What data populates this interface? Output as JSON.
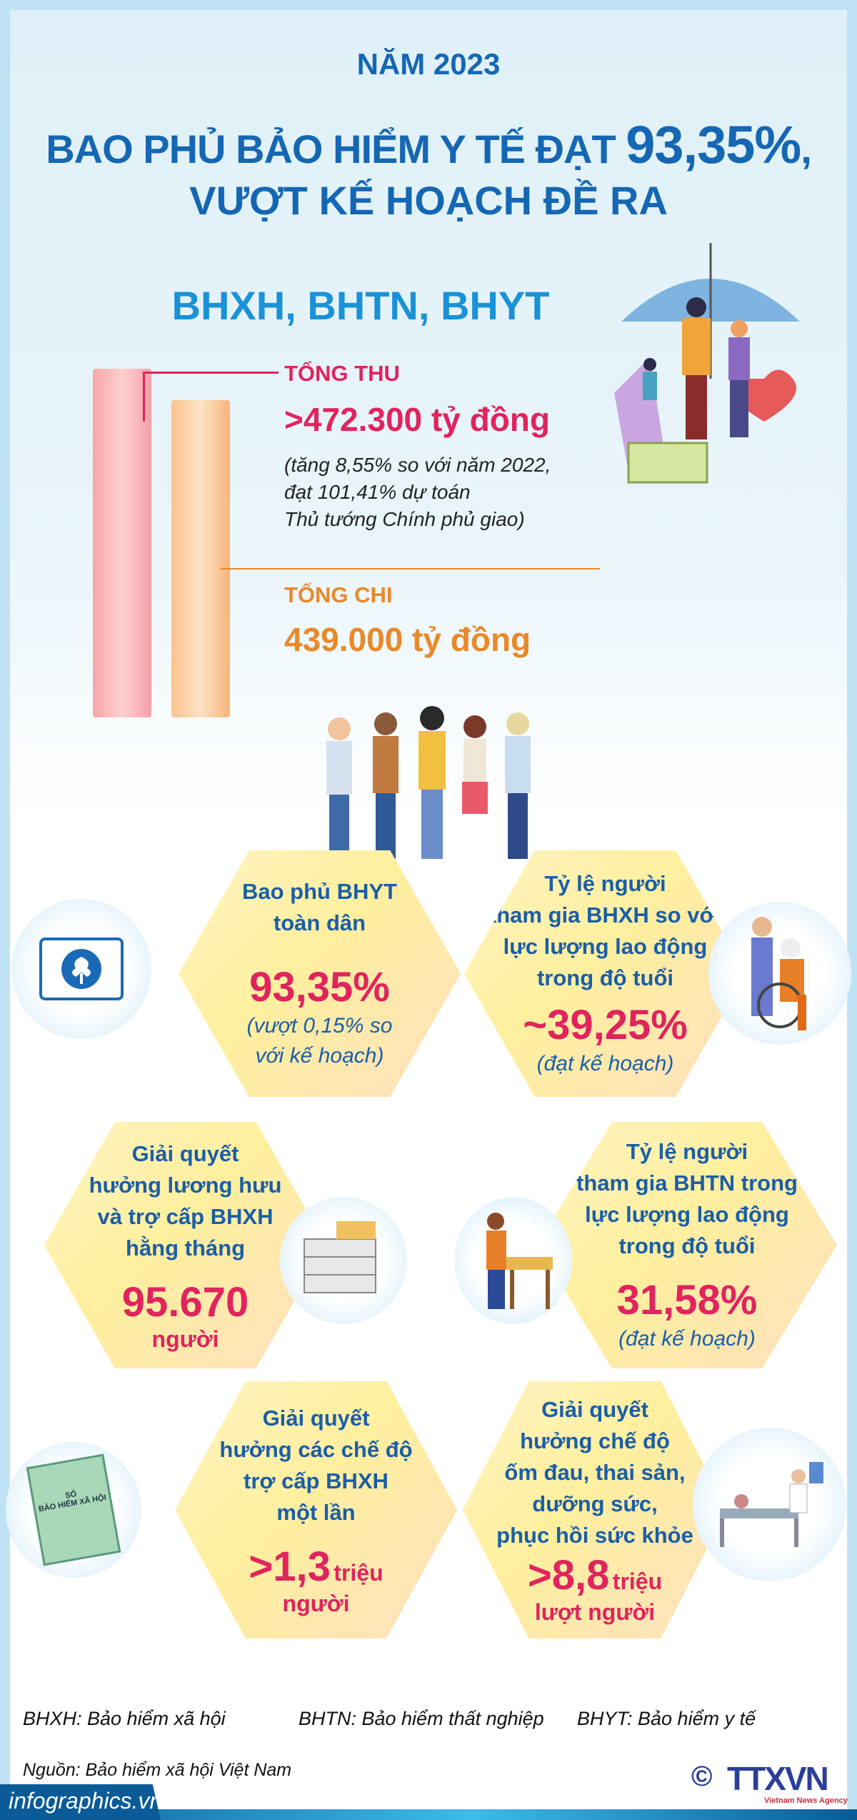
{
  "header": {
    "year": "NĂM 2023",
    "title_prefix": "BAO PHỦ BẢO HIỂM Y TẾ ĐẠT ",
    "title_value": "93,35%",
    "title_suffix": ",",
    "title_line2": "VƯỢT KẾ HOẠCH ĐỀ RA",
    "subtitle": "BHXH, BHTN, BHYT"
  },
  "revenue": {
    "label": "TỔNG THU",
    "value": ">472.300 tỷ đồng",
    "note": [
      "(tăng 8,55% so với năm 2022,",
      "đạt 101,41% dự toán",
      "Thủ tướng Chính phủ giao)"
    ]
  },
  "expense": {
    "label": "TỔNG CHI",
    "value": "439.000 tỷ đồng"
  },
  "colors": {
    "title": "#1567b3",
    "subtitle": "#1a92d8",
    "revenue": "#e0245e",
    "expense": "#e8892a",
    "hex_text": "#1a5ea8"
  },
  "stats": [
    {
      "title": [
        "Bao phủ BHYT",
        "toàn dân"
      ],
      "value": "93,35%",
      "unit": "",
      "note": [
        "(vượt 0,15% so",
        "với kế hoạch)"
      ],
      "icon": "insurance-card-icon"
    },
    {
      "title": [
        "Tỷ lệ người",
        "tham gia BHXH so với",
        "lực lượng lao động",
        "trong độ tuổi"
      ],
      "value": "~39,25%",
      "unit": "",
      "note": [
        "(đạt kế hoạch)"
      ],
      "icon": "wheelchair-icon"
    },
    {
      "title": [
        "Giải quyết",
        "hưởng lương hưu",
        "và trợ cấp BHXH",
        "hằng tháng"
      ],
      "value": "95.670",
      "unit": "người",
      "note": [],
      "icon": "money-stack-icon"
    },
    {
      "title": [
        "Tỷ lệ người",
        "tham gia BHTN trong",
        "lực lượng lao động",
        "trong độ tuổi"
      ],
      "value": "31,58%",
      "unit": "",
      "note": [
        "(đạt kế hoạch)"
      ],
      "icon": "worker-icon"
    },
    {
      "title": [
        "Giải quyết",
        "hưởng các chế độ",
        "trợ cấp BHXH",
        "một lần"
      ],
      "value": ">1,3",
      "unit_inline": "triệu",
      "unit": "người",
      "note": [],
      "icon": "insurance-book-icon"
    },
    {
      "title": [
        "Giải quyết",
        "hưởng chế độ",
        "ốm đau, thai sản,",
        "dưỡng sức,",
        "phục hồi sức khỏe"
      ],
      "value": ">8,8",
      "unit_inline": "triệu",
      "unit": "lượt người",
      "note": [],
      "icon": "hospital-bed-icon"
    }
  ],
  "book_text": [
    "SỔ",
    "BẢO HIỂM XÃ HỘI"
  ],
  "footer": {
    "abbr": [
      "BHXH: Bảo hiểm xã hội",
      "BHTN: Bảo hiểm thất nghiệp",
      "BHYT: Bảo hiểm y tế"
    ],
    "source": "Nguồn: Bảo hiểm xã hội Việt Nam",
    "site": "infographics.vn",
    "logo": "TTXVN",
    "logo_sub": "Vietnam News Agency",
    "copyright": "©"
  }
}
